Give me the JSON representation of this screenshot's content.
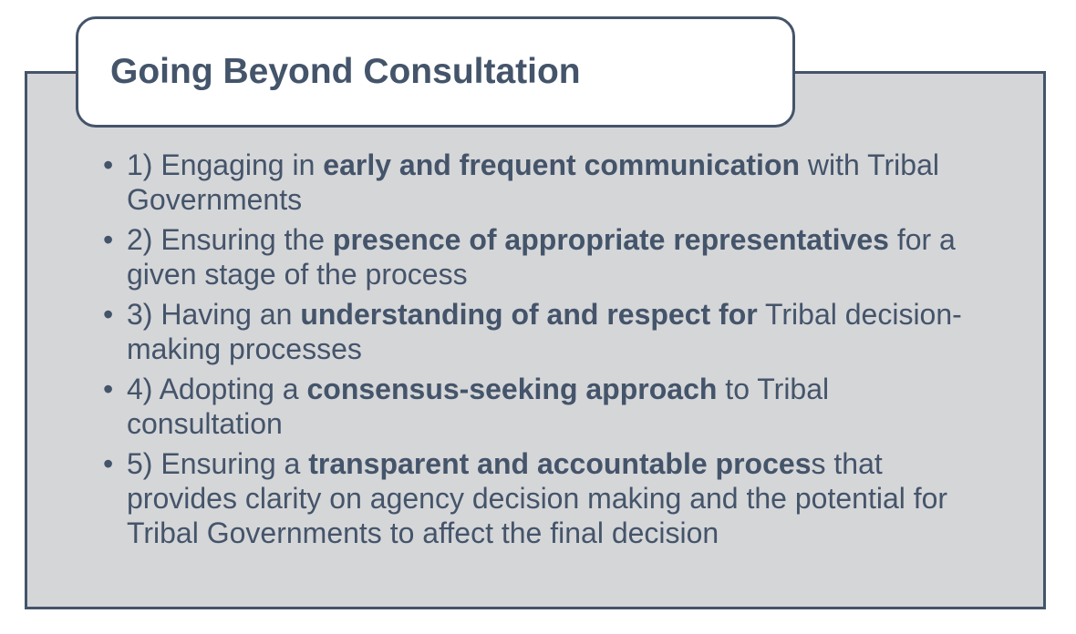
{
  "title": "Going Beyond Consultation",
  "bullet_glyph": "•",
  "items": [
    {
      "pre": "1) Engaging in ",
      "bold": "early and frequent communication",
      "post": " with Tribal Governments"
    },
    {
      "pre": "2) Ensuring the ",
      "bold": "presence of appropriate representatives",
      "post": " for a given stage of the process"
    },
    {
      "pre": "3) Having an ",
      "bold": "understanding of and respect for",
      "post": " Tribal decision-making processes"
    },
    {
      "pre": "4) Adopting a ",
      "bold": "consensus-seeking approach",
      "post": " to Tribal consultation"
    },
    {
      "pre": "5) Ensuring a ",
      "bold": "transparent and accountable proces",
      "post": "s that provides clarity on agency decision making and the potential for Tribal Governments to affect the final decision"
    }
  ]
}
